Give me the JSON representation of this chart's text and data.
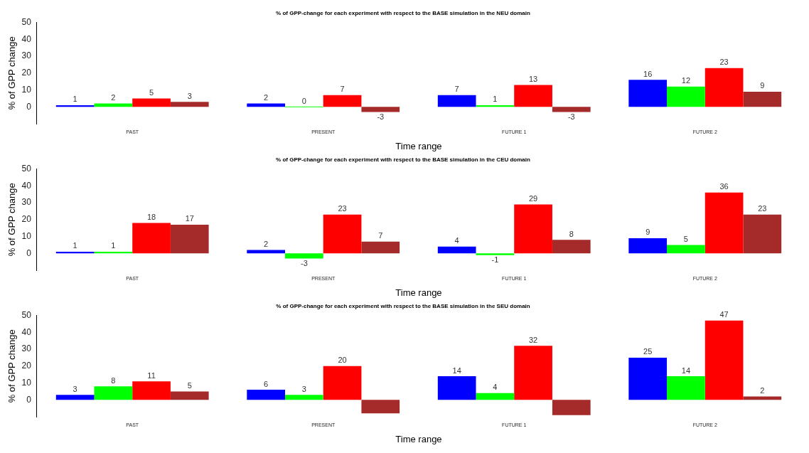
{
  "chart_data": [
    {
      "type": "bar",
      "title": "% of GPP-change for each experiment with respect to the BASE simulation in the NEU domain",
      "xlabel": "Time range",
      "ylabel": "% of GPP change",
      "categories": [
        "PAST",
        "PRESENT",
        "FUTURE 1",
        "FUTURE 2"
      ],
      "ylim": [
        -10,
        50
      ],
      "yticks": [
        0,
        10,
        20,
        30,
        40,
        50
      ],
      "series": [
        {
          "color": "#0000ff",
          "values": [
            1,
            2,
            7,
            16
          ],
          "value_labels": [
            "1",
            "2",
            "7",
            "16"
          ]
        },
        {
          "color": "#00ff00",
          "values": [
            2,
            0,
            1,
            12
          ],
          "value_labels": [
            "2",
            "0",
            "1",
            "12"
          ]
        },
        {
          "color": "#ff0000",
          "values": [
            5,
            7,
            13,
            23
          ],
          "value_labels": [
            "5",
            "7",
            "13",
            "23"
          ]
        },
        {
          "color": "#a52a2a",
          "values": [
            3,
            -3,
            -3,
            9
          ],
          "value_labels": [
            "3",
            "-3",
            "-3",
            "9"
          ]
        }
      ]
    },
    {
      "type": "bar",
      "title": "% of GPP-change for each experiment with respect to the BASE simulation in the CEU domain",
      "xlabel": "Time range",
      "ylabel": "% of GPP change",
      "categories": [
        "PAST",
        "PRESENT",
        "FUTURE 1",
        "FUTURE 2"
      ],
      "ylim": [
        -10,
        50
      ],
      "yticks": [
        0,
        10,
        20,
        30,
        40,
        50
      ],
      "series": [
        {
          "color": "#0000ff",
          "values": [
            1,
            2,
            4,
            9
          ],
          "value_labels": [
            "1",
            "2",
            "4",
            "9"
          ]
        },
        {
          "color": "#00ff00",
          "values": [
            1,
            -3,
            -1,
            5
          ],
          "value_labels": [
            "1",
            "-3",
            "-1",
            "5"
          ]
        },
        {
          "color": "#ff0000",
          "values": [
            18,
            23,
            29,
            36
          ],
          "value_labels": [
            "18",
            "23",
            "29",
            "36"
          ]
        },
        {
          "color": "#a52a2a",
          "values": [
            17,
            7,
            8,
            23
          ],
          "value_labels": [
            "17",
            "7",
            "8",
            "23"
          ]
        }
      ]
    },
    {
      "type": "bar",
      "title": "% of GPP-change for each experiment with respect to the BASE simulation in the SEU domain",
      "xlabel": "Time range",
      "ylabel": "% of GPP change",
      "categories": [
        "PAST",
        "PRESENT",
        "FUTURE 1",
        "FUTURE 2"
      ],
      "ylim": [
        -10,
        50
      ],
      "yticks": [
        0,
        10,
        20,
        30,
        40,
        50
      ],
      "series": [
        {
          "color": "#0000ff",
          "values": [
            3,
            6,
            14,
            25
          ],
          "value_labels": [
            "3",
            "6",
            "14",
            "25"
          ]
        },
        {
          "color": "#00ff00",
          "values": [
            8,
            3,
            4,
            14
          ],
          "value_labels": [
            "8",
            "3",
            "4",
            "14"
          ]
        },
        {
          "color": "#ff0000",
          "values": [
            11,
            20,
            32,
            47
          ],
          "value_labels": [
            "11",
            "20",
            "32",
            "47"
          ]
        },
        {
          "color": "#a52a2a",
          "values": [
            5,
            -8,
            -9,
            2
          ],
          "value_labels": [
            "5",
            null,
            null,
            "2"
          ]
        }
      ]
    }
  ]
}
